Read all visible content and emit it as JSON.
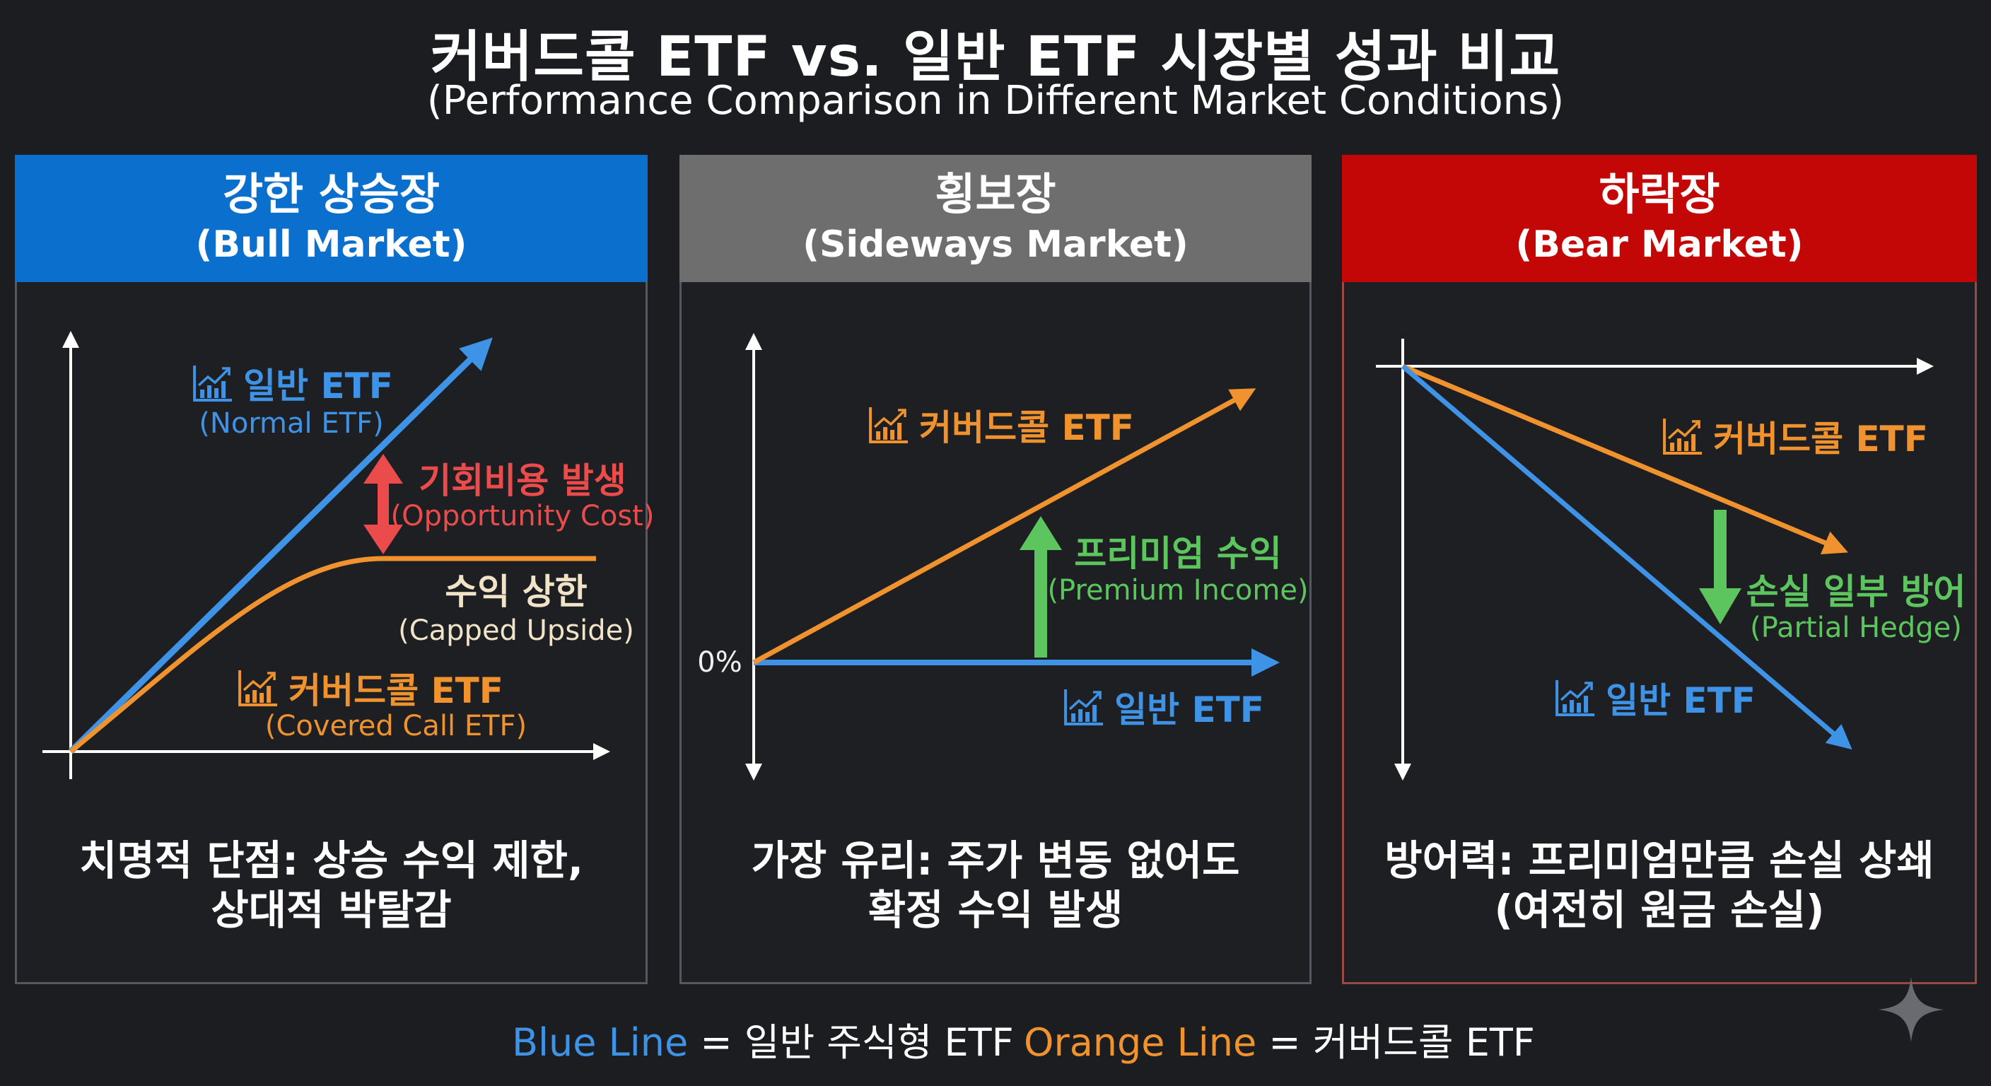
{
  "title": {
    "main": "커버드콜 ETF vs. 일반 ETF 시장별 성과 비교",
    "sub": "(Performance Comparison in Different Market Conditions)"
  },
  "panels": {
    "bull": {
      "title_ko": "강한 상승장",
      "title_en": "(Bull Market)",
      "normal_label": "일반 ETF",
      "normal_sub": "(Normal ETF)",
      "gap_label": "기회비용 발생",
      "gap_sub": "(Opportunity Cost)",
      "cap_label": "수익 상한",
      "cap_sub": "(Capped Upside)",
      "cc_label": "커버드콜 ETF",
      "cc_sub": "(Covered Call ETF)",
      "summary_1": "치명적 단점: 상승 수익 제한,",
      "summary_2": "상대적 박탈감"
    },
    "sideways": {
      "title_ko": "횡보장",
      "title_en": "(Sideways Market)",
      "zero_label": "0%",
      "cc_label": "커버드콜 ETF",
      "premium_label": "프리미엄 수익",
      "premium_sub": "(Premium Income)",
      "normal_label": "일반 ETF",
      "summary_1": "가장 유리: 주가 변동 없어도",
      "summary_2": "확정 수익 발생"
    },
    "bear": {
      "title_ko": "하락장",
      "title_en": "(Bear Market)",
      "cc_label": "커버드콜 ETF",
      "hedge_label": "손실 일부 방어",
      "hedge_sub": "(Partial Hedge)",
      "normal_label": "일반 ETF",
      "summary_1": "방어력: 프리미엄만큼 손실 상쇄",
      "summary_2": "(여전히 원금 손실)"
    }
  },
  "legend": {
    "blue_key": "Blue Line",
    "blue_value": "= 일반 주식형 ETF",
    "orange_key": "Orange Line",
    "orange_value": "= 커버드콜 ETF"
  },
  "colors": {
    "blue": "#3f93e6",
    "orange": "#f0922e",
    "red": "#ec4b4b",
    "green": "#5cc55e",
    "bull_header": "#0b6fcd",
    "sideways_header": "#6e6e6e",
    "bear_header": "#c30606"
  }
}
